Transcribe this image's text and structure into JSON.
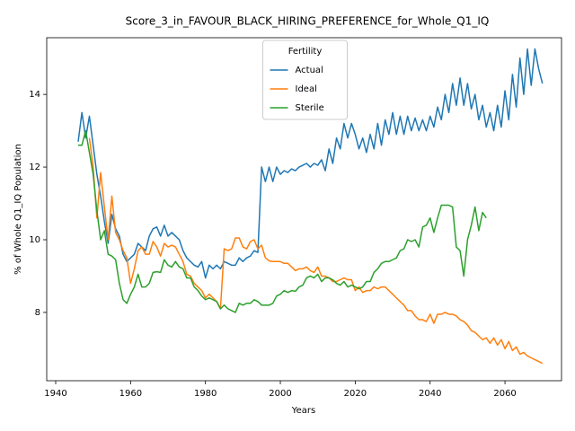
{
  "chart_data": {
    "type": "line",
    "title": "Score_3_in_FAVOUR_BLACK_HIRING_PREFERENCE_for_Whole_Q1_IQ",
    "xlabel": "Years",
    "ylabel": "% of Whole Q1_IQ Population",
    "legend_title": "Fertility",
    "legend": "upper center",
    "xlim": [
      1937.6,
      2075.1
    ],
    "ylim": [
      6.12,
      15.56
    ],
    "xticks": [
      1940,
      1960,
      1980,
      2000,
      2020,
      2040,
      2060
    ],
    "yticks": [
      8,
      10,
      12,
      14
    ],
    "x": [
      1946,
      1947,
      1948,
      1949,
      1950,
      1951,
      1952,
      1953,
      1954,
      1955,
      1956,
      1957,
      1958,
      1959,
      1960,
      1961,
      1962,
      1963,
      1964,
      1965,
      1966,
      1967,
      1968,
      1969,
      1970,
      1971,
      1972,
      1973,
      1974,
      1975,
      1976,
      1977,
      1978,
      1979,
      1980,
      1981,
      1982,
      1983,
      1984,
      1985,
      1986,
      1987,
      1988,
      1989,
      1990,
      1991,
      1992,
      1993,
      1994,
      1995,
      1996,
      1997,
      1998,
      1999,
      2000,
      2001,
      2002,
      2003,
      2004,
      2005,
      2006,
      2007,
      2008,
      2009,
      2010,
      2011,
      2012,
      2013,
      2014,
      2015,
      2016,
      2017,
      2018,
      2019,
      2020,
      2021,
      2022,
      2023,
      2024,
      2025,
      2026,
      2027,
      2028,
      2029,
      2030,
      2031,
      2032,
      2033,
      2034,
      2035,
      2036,
      2037,
      2038,
      2039,
      2040,
      2041,
      2042,
      2043,
      2044,
      2045,
      2046,
      2047,
      2048,
      2049,
      2050,
      2051,
      2052,
      2053,
      2054,
      2055,
      2056,
      2057,
      2058,
      2059,
      2060,
      2061,
      2062,
      2063,
      2064,
      2065,
      2066,
      2067,
      2068,
      2069,
      2070
    ],
    "series": [
      {
        "name": "Actual",
        "color": "#1f77b4",
        "values": [
          12.7,
          13.5,
          12.8,
          13.4,
          12.6,
          11.8,
          11.2,
          10.5,
          9.9,
          10.7,
          10.3,
          10.1,
          9.6,
          9.4,
          9.5,
          9.6,
          9.9,
          9.8,
          9.7,
          10.1,
          10.3,
          10.35,
          10.1,
          10.4,
          10.1,
          10.2,
          10.1,
          10.0,
          9.7,
          9.5,
          9.4,
          9.3,
          9.25,
          9.4,
          8.95,
          9.3,
          9.2,
          9.3,
          9.2,
          9.4,
          9.35,
          9.3,
          9.3,
          9.5,
          9.4,
          9.5,
          9.55,
          9.7,
          9.65,
          12.0,
          11.6,
          12.0,
          11.6,
          12.0,
          11.8,
          11.9,
          11.85,
          11.95,
          11.9,
          12.0,
          12.05,
          12.1,
          12.0,
          12.1,
          12.05,
          12.2,
          11.9,
          12.5,
          12.1,
          12.8,
          12.5,
          13.2,
          12.8,
          13.2,
          12.9,
          12.5,
          12.8,
          12.4,
          12.9,
          12.5,
          13.2,
          12.6,
          13.3,
          12.9,
          13.5,
          12.9,
          13.4,
          12.9,
          13.4,
          13.0,
          13.35,
          13.0,
          13.3,
          13.0,
          13.4,
          13.1,
          13.65,
          13.3,
          14.0,
          13.5,
          14.3,
          13.7,
          14.45,
          13.7,
          14.3,
          13.6,
          14.0,
          13.3,
          13.7,
          13.1,
          13.5,
          13.0,
          13.7,
          13.1,
          14.1,
          13.3,
          14.55,
          13.65,
          15.0,
          14.0,
          15.25,
          14.25,
          15.25,
          14.7,
          14.3
        ]
      },
      {
        "name": "Ideal",
        "color": "#ff7f0e",
        "values": [
          null,
          null,
          null,
          12.8,
          12.0,
          10.6,
          11.85,
          10.9,
          10.0,
          11.2,
          10.2,
          10.0,
          9.7,
          9.5,
          8.8,
          9.2,
          9.7,
          9.8,
          9.6,
          9.6,
          9.95,
          9.8,
          9.55,
          9.9,
          9.8,
          9.85,
          9.8,
          9.6,
          9.4,
          9.05,
          9.0,
          8.8,
          8.7,
          8.6,
          8.4,
          8.5,
          8.4,
          8.3,
          8.1,
          9.75,
          9.7,
          9.75,
          10.05,
          10.05,
          9.8,
          9.75,
          9.95,
          10.0,
          9.75,
          9.85,
          9.5,
          9.42,
          9.4,
          9.4,
          9.4,
          9.35,
          9.35,
          9.25,
          9.15,
          9.2,
          9.2,
          9.25,
          9.15,
          9.1,
          9.25,
          9.0,
          9.0,
          8.95,
          8.85,
          8.85,
          8.9,
          8.95,
          8.9,
          8.9,
          8.6,
          8.7,
          8.55,
          8.6,
          8.6,
          8.7,
          8.65,
          8.7,
          8.7,
          8.6,
          8.5,
          8.4,
          8.3,
          8.2,
          8.05,
          8.05,
          7.9,
          7.8,
          7.8,
          7.75,
          7.95,
          7.7,
          7.95,
          7.95,
          8.0,
          7.95,
          7.95,
          7.9,
          7.8,
          7.75,
          7.65,
          7.5,
          7.45,
          7.35,
          7.25,
          7.3,
          7.15,
          7.3,
          7.1,
          7.25,
          7.0,
          7.2,
          6.95,
          7.05,
          6.85,
          6.9,
          6.8,
          6.75,
          6.7,
          6.65,
          6.6
        ]
      },
      {
        "name": "Sterile",
        "color": "#2ca02c",
        "values": [
          12.6,
          12.6,
          13.0,
          12.4,
          11.8,
          10.8,
          10.0,
          10.25,
          9.6,
          9.55,
          9.45,
          8.8,
          8.35,
          8.25,
          8.5,
          8.7,
          9.05,
          8.7,
          8.7,
          8.8,
          9.1,
          9.12,
          9.1,
          9.45,
          9.3,
          9.25,
          9.4,
          9.25,
          9.2,
          8.95,
          8.95,
          8.7,
          8.6,
          8.45,
          8.35,
          8.4,
          8.35,
          8.3,
          8.1,
          8.2,
          8.1,
          8.05,
          8.0,
          8.25,
          8.2,
          8.25,
          8.25,
          8.35,
          8.3,
          8.2,
          8.2,
          8.2,
          8.25,
          8.45,
          8.5,
          8.6,
          8.55,
          8.6,
          8.58,
          8.7,
          8.75,
          8.95,
          9.0,
          8.95,
          9.05,
          8.85,
          8.95,
          8.95,
          8.9,
          8.8,
          8.75,
          8.85,
          8.7,
          8.75,
          8.7,
          8.65,
          8.7,
          8.85,
          8.85,
          9.1,
          9.2,
          9.35,
          9.4,
          9.4,
          9.45,
          9.5,
          9.7,
          9.75,
          10.0,
          9.95,
          10.0,
          9.8,
          10.35,
          10.4,
          10.6,
          10.2,
          10.6,
          10.95,
          10.95,
          10.95,
          10.9,
          9.8,
          9.7,
          9.0,
          10.0,
          10.4,
          10.9,
          10.25,
          10.75,
          10.6,
          null,
          null,
          null,
          null,
          null,
          null,
          null,
          null,
          null,
          null,
          null,
          null,
          null,
          null,
          null
        ]
      }
    ]
  }
}
